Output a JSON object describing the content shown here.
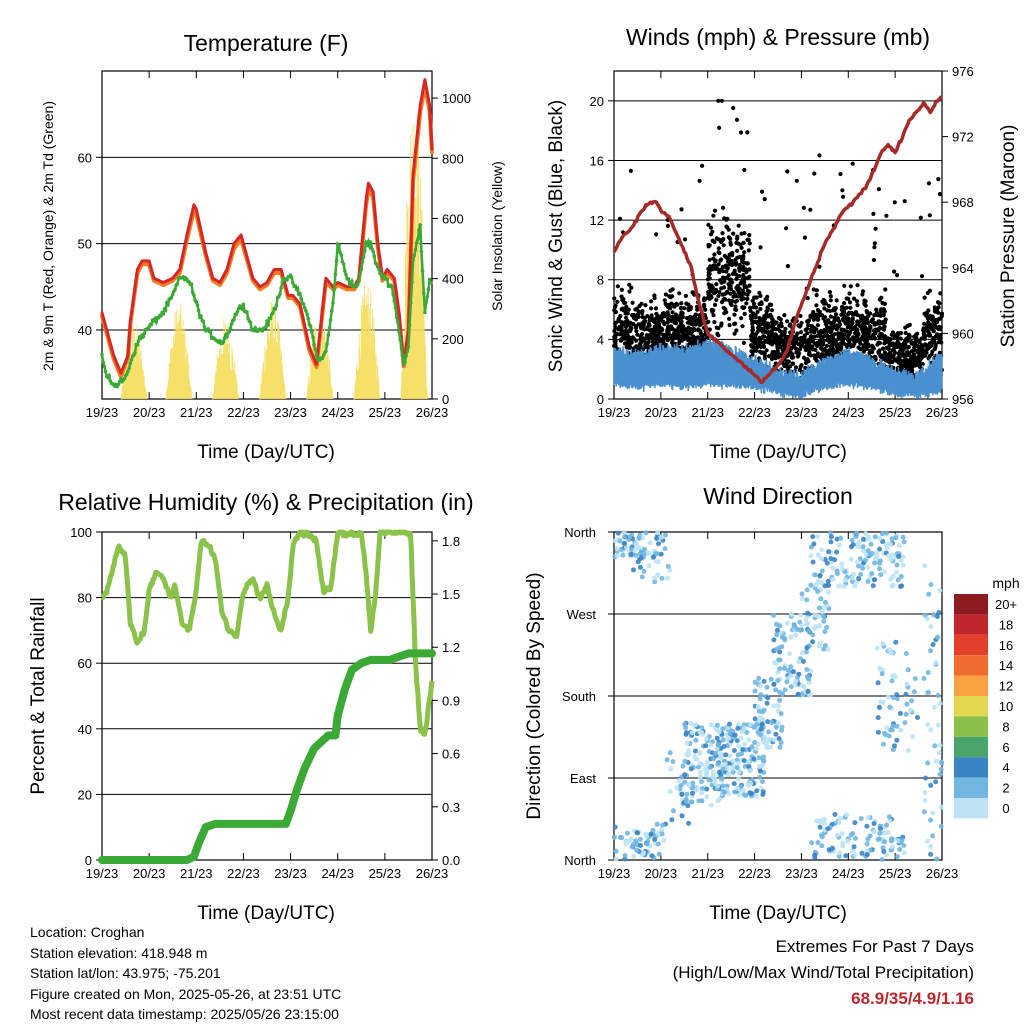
{
  "chart_data": [
    {
      "type": "line",
      "title": "Temperature (F)",
      "xlabel": "Time (Day/UTC)",
      "ylabel": "2m & 9m T (Red, Orange) & 2m Td (Green)",
      "y2label": "Solar Insolation (Yellow)",
      "x_ticks": [
        "19/23",
        "20/23",
        "21/23",
        "22/23",
        "23/23",
        "24/23",
        "25/23",
        "26/23"
      ],
      "xlim": [
        0,
        7
      ],
      "ylim": [
        32,
        70
      ],
      "y_ticks": [
        40,
        50,
        60
      ],
      "y2lim": [
        0,
        1090
      ],
      "y2_ticks": [
        0,
        200,
        400,
        600,
        800,
        1000
      ],
      "grid": "horizontal",
      "series": [
        {
          "color": "#d62728",
          "x": [
            0,
            0.1,
            0.25,
            0.4,
            0.55,
            0.6,
            0.75,
            0.85,
            1.0,
            1.1,
            1.3,
            1.5,
            1.65,
            1.8,
            1.95,
            2.0,
            2.2,
            2.35,
            2.5,
            2.65,
            2.8,
            2.95,
            3.05,
            3.2,
            3.35,
            3.5,
            3.65,
            3.8,
            3.95,
            4.05,
            4.2,
            4.4,
            4.55,
            4.65,
            4.75,
            4.9,
            5.0,
            5.2,
            5.35,
            5.45,
            5.6,
            5.65,
            5.75,
            5.85,
            5.95,
            6.05,
            6.2,
            6.3,
            6.4,
            6.5,
            6.6,
            6.75,
            6.85,
            6.95,
            7.0
          ],
          "y": [
            42,
            40,
            37,
            35,
            37,
            41,
            47,
            48,
            48,
            46,
            45.5,
            46,
            47,
            51,
            54.5,
            54,
            49,
            46,
            45.5,
            47,
            50,
            51,
            49,
            46,
            45,
            45.5,
            47,
            47,
            44,
            44,
            43,
            38,
            36,
            41,
            46,
            45,
            45.5,
            45,
            45,
            46,
            55,
            57,
            56,
            50,
            46,
            47,
            46,
            42,
            36,
            40,
            58,
            66,
            69,
            66,
            61
          ]
        },
        {
          "color": "#f47d20",
          "x": [
            0,
            0.1,
            0.25,
            0.4,
            0.55,
            0.6,
            0.75,
            0.85,
            1.0,
            1.1,
            1.3,
            1.5,
            1.65,
            1.8,
            1.95,
            2.0,
            2.2,
            2.35,
            2.5,
            2.65,
            2.8,
            2.95,
            3.05,
            3.2,
            3.35,
            3.5,
            3.65,
            3.8,
            3.95,
            4.05,
            4.2,
            4.4,
            4.55,
            4.65,
            4.75,
            4.9,
            5.0,
            5.2,
            5.35,
            5.45,
            5.6,
            5.65,
            5.75,
            5.85,
            5.95,
            6.05,
            6.2,
            6.3,
            6.4,
            6.5,
            6.6,
            6.75,
            6.85,
            6.95,
            7.0
          ],
          "y": [
            41.6,
            39.6,
            36.6,
            34.6,
            36.8,
            40.6,
            46.6,
            47.6,
            47.6,
            45.7,
            45.2,
            45.7,
            46.6,
            50.4,
            53.8,
            53.4,
            48.6,
            45.7,
            45.2,
            46.6,
            49.4,
            50.5,
            48.6,
            45.7,
            44.7,
            45.2,
            46.6,
            46.6,
            43.7,
            43.7,
            42.7,
            37.6,
            35.7,
            40.6,
            45.6,
            44.7,
            45.2,
            44.7,
            44.7,
            45.7,
            54.3,
            56.2,
            55.4,
            49.6,
            45.7,
            46.6,
            45.7,
            41.7,
            35.8,
            39.8,
            57.2,
            65.2,
            68.2,
            65.4,
            60.6
          ]
        },
        {
          "color": "#3aa935",
          "x": [
            0,
            0.1,
            0.3,
            0.5,
            0.65,
            0.8,
            0.95,
            1.1,
            1.3,
            1.5,
            1.65,
            1.8,
            1.9,
            2.0,
            2.2,
            2.4,
            2.55,
            2.7,
            2.85,
            3.0,
            3.2,
            3.4,
            3.55,
            3.7,
            3.85,
            4.0,
            4.2,
            4.4,
            4.55,
            4.65,
            4.75,
            4.9,
            5.0,
            5.2,
            5.35,
            5.45,
            5.6,
            5.7,
            5.85,
            6.0,
            6.15,
            6.3,
            6.4,
            6.5,
            6.6,
            6.75,
            6.85,
            6.95,
            7.0
          ],
          "y": [
            37,
            34.5,
            33.5,
            34.5,
            37,
            39,
            40,
            41,
            42,
            44,
            46,
            46,
            45,
            43,
            40,
            39,
            38.5,
            40,
            42,
            43,
            40,
            40,
            41,
            43,
            46,
            46,
            44,
            41,
            37,
            36.5,
            37.5,
            43,
            50,
            46,
            45,
            45.5,
            50,
            50,
            47,
            46,
            45,
            40,
            36,
            38,
            48,
            52,
            42,
            46,
            45
          ]
        }
      ],
      "insolation_days": [
        {
          "center": 0.68,
          "peak": 260
        },
        {
          "center": 1.63,
          "peak": 330
        },
        {
          "center": 2.62,
          "peak": 280
        },
        {
          "center": 3.62,
          "peak": 340
        },
        {
          "center": 4.62,
          "peak": 320
        },
        {
          "center": 5.62,
          "peak": 400
        },
        {
          "center": 6.62,
          "peak": 1080
        }
      ]
    },
    {
      "type": "line+scatter",
      "title": "Winds (mph) & Pressure (mb)",
      "xlabel": "Time (Day/UTC)",
      "ylabel": "Sonic Wind & Gust (Blue, Black)",
      "y2label": "Station Pressure (Maroon)",
      "x_ticks": [
        "19/23",
        "20/23",
        "21/23",
        "22/23",
        "23/23",
        "24/23",
        "25/23",
        "26/23"
      ],
      "xlim": [
        0,
        7
      ],
      "ylim": [
        0,
        22
      ],
      "y_ticks": [
        0,
        4,
        8,
        12,
        16,
        20
      ],
      "y2lim": [
        956,
        976
      ],
      "y2_ticks": [
        956,
        960,
        964,
        968,
        972,
        976
      ],
      "grid": "horizontal",
      "gust_points_note": "dense black scatter, typically 2-10 mph, peaks near 20 mph around 21/23-22/23",
      "wind_envelope": {
        "color": "#4a90cf",
        "x": [
          0,
          0.5,
          1.0,
          1.5,
          2.0,
          2.5,
          3.0,
          3.5,
          4.0,
          4.5,
          5.0,
          5.5,
          6.0,
          6.5,
          7.0
        ],
        "lo": [
          1,
          0.8,
          1,
          0.8,
          1,
          0.9,
          0.8,
          0.4,
          0.2,
          0.8,
          1,
          0.8,
          0.3,
          0.2,
          0.6
        ],
        "hi": [
          3.2,
          3,
          3.4,
          3.2,
          3.8,
          3.4,
          2.6,
          1.8,
          1.6,
          2.6,
          3.2,
          2.6,
          1.8,
          1.6,
          3
        ]
      },
      "pressure": {
        "color": "#a52a2a",
        "x": [
          0,
          0.2,
          0.4,
          0.6,
          0.75,
          0.9,
          1.0,
          1.2,
          1.35,
          1.5,
          1.65,
          1.8,
          2.0,
          2.2,
          2.4,
          2.6,
          2.8,
          3.0,
          3.15,
          3.3,
          3.5,
          3.7,
          3.9,
          4.1,
          4.3,
          4.5,
          4.7,
          4.9,
          5.1,
          5.25,
          5.4,
          5.55,
          5.7,
          5.85,
          6.0,
          6.15,
          6.3,
          6.45,
          6.6,
          6.75,
          6.85,
          7.0
        ],
        "y": [
          965,
          966,
          966.5,
          967.5,
          968,
          968,
          967.5,
          967,
          966,
          965,
          964,
          962,
          960,
          959.5,
          959,
          958.5,
          958,
          957.5,
          957,
          957.5,
          958,
          959,
          961,
          962.5,
          964,
          965.5,
          966.5,
          967.5,
          968,
          968.5,
          969,
          970,
          971,
          971.5,
          971,
          972,
          973,
          973.5,
          974,
          973.5,
          974,
          974.5
        ]
      }
    },
    {
      "type": "line",
      "title": "Relative Humidity (%) & Precipitation (in)",
      "xlabel": "Time (Day/UTC)",
      "ylabel": "Percent & Total Rainfall",
      "x_ticks": [
        "19/23",
        "20/23",
        "21/23",
        "22/23",
        "23/23",
        "24/23",
        "25/23",
        "26/23"
      ],
      "xlim": [
        0,
        7
      ],
      "ylim": [
        0,
        100
      ],
      "y_ticks": [
        0,
        20,
        40,
        60,
        80,
        100
      ],
      "y2lim": [
        0,
        1.85
      ],
      "y2_ticks": [
        "0.0",
        "0.3",
        "0.6",
        "0.9",
        "1.2",
        "1.5",
        "1.8"
      ],
      "grid": "horizontal",
      "series": [
        {
          "color": "#8bc34a",
          "x": [
            0,
            0.1,
            0.25,
            0.35,
            0.5,
            0.6,
            0.75,
            0.9,
            1.0,
            1.15,
            1.3,
            1.45,
            1.55,
            1.7,
            1.85,
            2.0,
            2.1,
            2.25,
            2.4,
            2.55,
            2.7,
            2.85,
            3.0,
            3.2,
            3.35,
            3.5,
            3.65,
            3.8,
            3.95,
            4.05,
            4.2,
            4.4,
            4.55,
            4.7,
            4.85,
            5.0,
            5.1,
            5.2,
            5.3,
            5.4,
            5.5,
            5.6,
            5.7,
            5.8,
            5.9,
            6.0,
            6.2,
            6.4,
            6.55,
            6.65,
            6.75,
            6.85,
            7.0
          ],
          "y": [
            80,
            82,
            90,
            96,
            92,
            72,
            66,
            70,
            82,
            88,
            86,
            80,
            84,
            72,
            70,
            82,
            97,
            96,
            92,
            75,
            70,
            68,
            82,
            86,
            80,
            84,
            75,
            70,
            80,
            96,
            100,
            99,
            97,
            82,
            83,
            100,
            100,
            99,
            100,
            99,
            100,
            88,
            70,
            80,
            100,
            100,
            100,
            100,
            99,
            60,
            40,
            38,
            55
          ]
        },
        {
          "color": "#3aa935",
          "x": [
            0,
            1.2,
            1.6,
            1.8,
            1.95,
            2.05,
            2.2,
            2.4,
            2.6,
            2.8,
            3.0,
            3.2,
            3.4,
            3.6,
            3.9,
            4.0,
            4.15,
            4.3,
            4.5,
            4.65,
            4.8,
            4.95,
            5.0,
            5.15,
            5.3,
            5.5,
            5.7,
            5.9,
            6.1,
            6.3,
            6.5,
            6.8,
            7.0
          ],
          "y": [
            0,
            0,
            0,
            0,
            1,
            5,
            10,
            11,
            11,
            11,
            11,
            11,
            11,
            11,
            11,
            15,
            22,
            28,
            34,
            36,
            38,
            38,
            44,
            52,
            58,
            60,
            61,
            61,
            61,
            62,
            63,
            63,
            63
          ]
        }
      ]
    },
    {
      "type": "scatter",
      "title": "Wind Direction",
      "xlabel": "Time (Day/UTC)",
      "ylabel": "Direction (Colored By Speed)",
      "x_ticks": [
        "19/23",
        "20/23",
        "21/23",
        "22/23",
        "23/23",
        "24/23",
        "25/23",
        "26/23"
      ],
      "xlim": [
        0,
        7
      ],
      "y_ticks": [
        "North",
        "East",
        "South",
        "West",
        "North"
      ],
      "ylim": [
        0,
        360
      ],
      "grid": "horizontal",
      "clusters": [
        {
          "x": [
            0,
            1.1
          ],
          "y": [
            330,
            360
          ],
          "n": 70
        },
        {
          "x": [
            0,
            1.1
          ],
          "y": [
            0,
            40
          ],
          "n": 60
        },
        {
          "x": [
            0.4,
            1.2
          ],
          "y": [
            300,
            340
          ],
          "n": 15
        },
        {
          "x": [
            1.0,
            1.6
          ],
          "y": [
            40,
            120
          ],
          "n": 25
        },
        {
          "x": [
            1.5,
            2.3
          ],
          "y": [
            60,
            150
          ],
          "n": 120
        },
        {
          "x": [
            2.2,
            3.2
          ],
          "y": [
            70,
            150
          ],
          "n": 160
        },
        {
          "x": [
            3.0,
            3.6
          ],
          "y": [
            120,
            200
          ],
          "n": 70
        },
        {
          "x": [
            3.4,
            4.2
          ],
          "y": [
            180,
            270
          ],
          "n": 90
        },
        {
          "x": [
            4.0,
            4.6
          ],
          "y": [
            230,
            300
          ],
          "n": 40
        },
        {
          "x": [
            4.2,
            6.2
          ],
          "y": [
            300,
            360
          ],
          "n": 150
        },
        {
          "x": [
            4.2,
            6.2
          ],
          "y": [
            0,
            50
          ],
          "n": 110
        },
        {
          "x": [
            5.6,
            6.5
          ],
          "y": [
            120,
            240
          ],
          "n": 60
        },
        {
          "x": [
            6.6,
            7.0
          ],
          "y": [
            0,
            360
          ],
          "n": 50
        }
      ],
      "legend_title": "mph",
      "legend": [
        {
          "label": "20+",
          "color": "#8e1b1f"
        },
        {
          "label": "18",
          "color": "#c0272d"
        },
        {
          "label": "16",
          "color": "#e3402b"
        },
        {
          "label": "14",
          "color": "#f06b2f"
        },
        {
          "label": "12",
          "color": "#f8a241"
        },
        {
          "label": "10",
          "color": "#e5d851"
        },
        {
          "label": "8",
          "color": "#8dc04a"
        },
        {
          "label": "6",
          "color": "#4aa56a"
        },
        {
          "label": "4",
          "color": "#3a84c4"
        },
        {
          "label": "2",
          "color": "#72b6e2"
        },
        {
          "label": "0",
          "color": "#bde3f5"
        }
      ]
    }
  ],
  "info": {
    "location": "Location: Croghan",
    "elevation": "Station elevation: 418.948 m",
    "latlon": "Station lat/lon: 43.975; -75.201",
    "created": "Figure created on Mon, 2025-05-26, at 23:51 UTC",
    "recent": "Most recent data timestamp: 2025/05/26 23:15:00"
  },
  "extremes": {
    "line1": "Extremes For Past 7 Days",
    "line2": "(High/Low/Max Wind/Total Precipitation)",
    "values": "68.9/35/4.9/1.16"
  }
}
